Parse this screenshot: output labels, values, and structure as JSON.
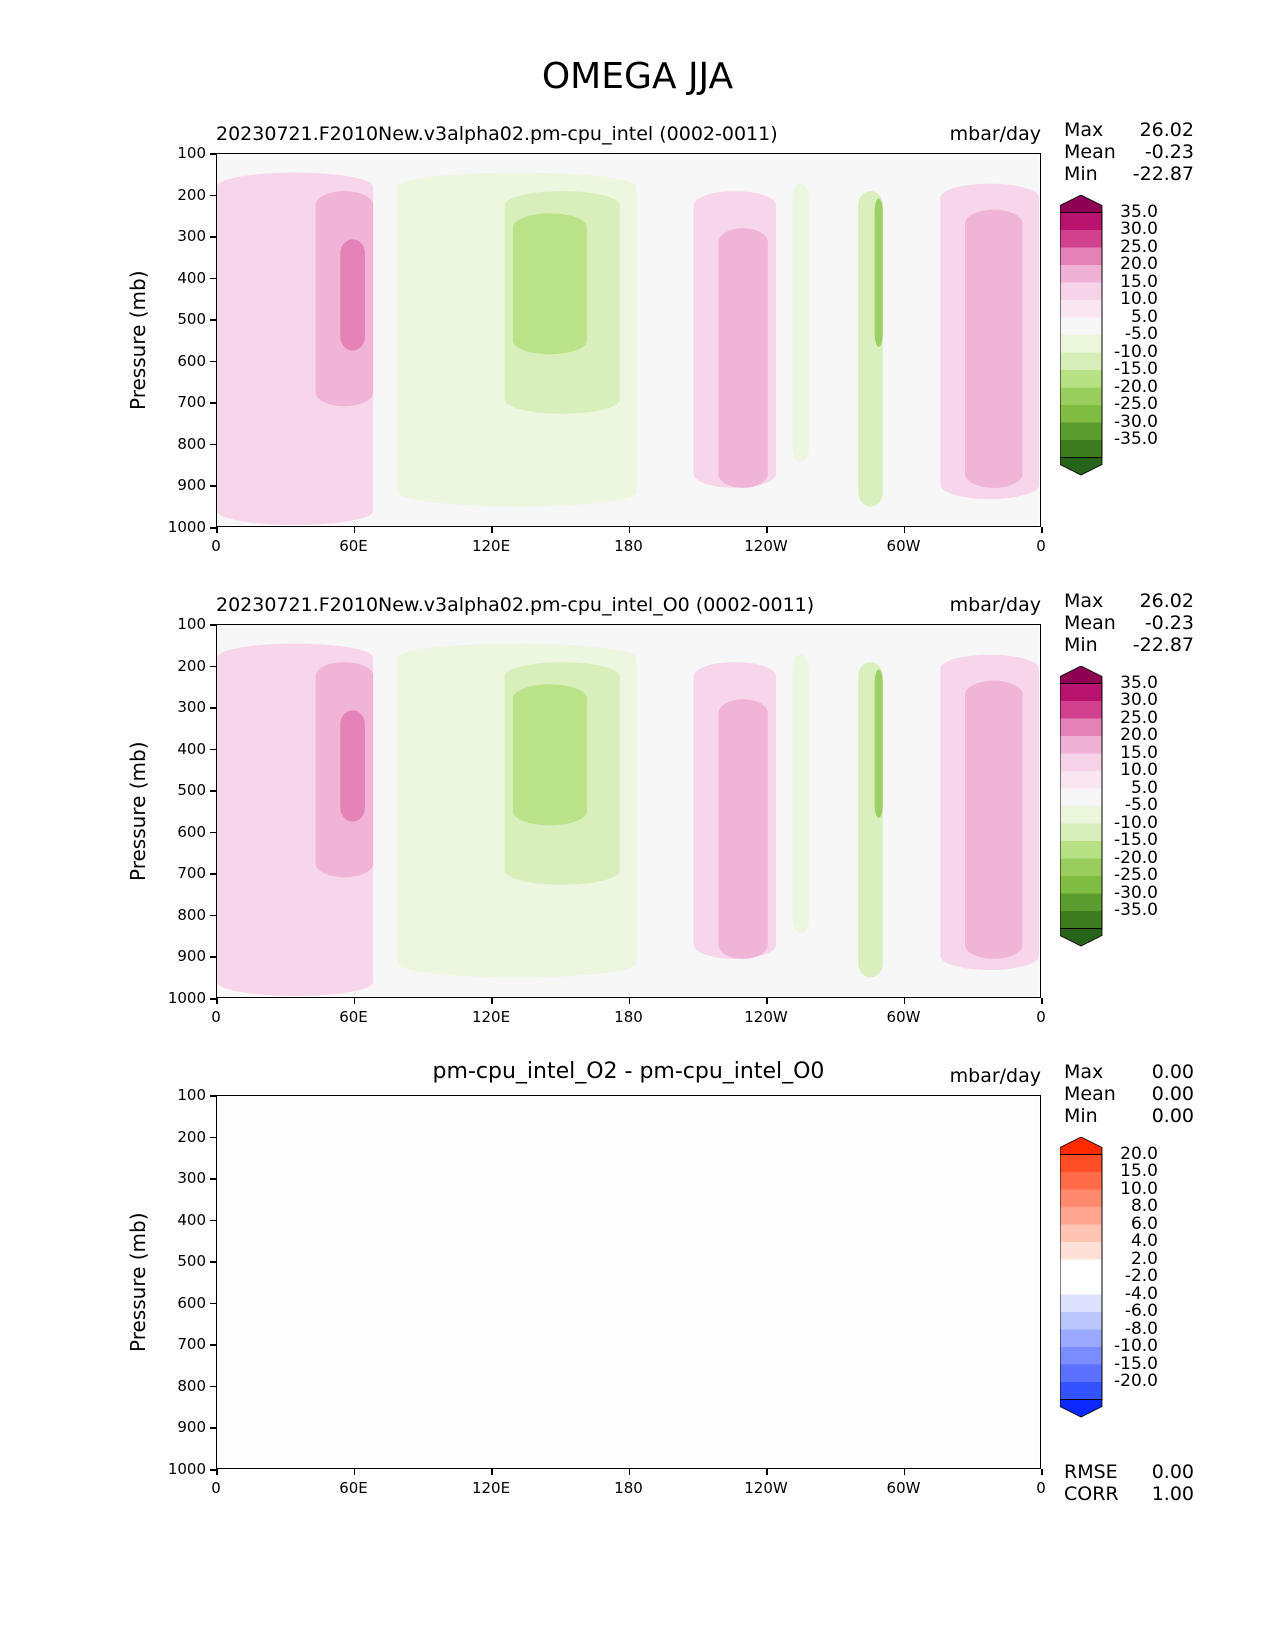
{
  "title": "OMEGA JJA",
  "chart_data": [
    {
      "type": "heatmap",
      "title": "20230721.F2010New.v3alpha02.pm-cpu_intel (0002-0011)",
      "units": "mbar/day",
      "ylabel": "Pressure (mb)",
      "y_ticks": [
        "100",
        "200",
        "300",
        "400",
        "500",
        "600",
        "700",
        "800",
        "900",
        "1000"
      ],
      "x_ticks": [
        "0",
        "60E",
        "120E",
        "180",
        "120W",
        "60W",
        "0"
      ],
      "stats": {
        "max_label": "Max",
        "max": "26.02",
        "mean_label": "Mean",
        "mean": "-0.23",
        "min_label": "Min",
        "min": "-22.87"
      },
      "colorbar": {
        "levels": [
          "35.0",
          "30.0",
          "25.0",
          "20.0",
          "15.0",
          "10.0",
          "5.0",
          "-5.0",
          "-10.0",
          "-15.0",
          "-20.0",
          "-25.0",
          "-30.0",
          "-35.0"
        ],
        "colors": [
          "#8e0152",
          "#b8146f",
          "#d1418e",
          "#e481b6",
          "#efb2d6",
          "#f7d3e9",
          "#fae6f1",
          "#f7f7f7",
          "#ecf6dd",
          "#d7eeb9",
          "#b8e186",
          "#99ce5f",
          "#7fbc41",
          "#5b9c2e",
          "#3e7d1f",
          "#276419"
        ]
      }
    },
    {
      "type": "heatmap",
      "title": "20230721.F2010New.v3alpha02.pm-cpu_intel_O0 (0002-0011)",
      "units": "mbar/day",
      "ylabel": "Pressure (mb)",
      "y_ticks": [
        "100",
        "200",
        "300",
        "400",
        "500",
        "600",
        "700",
        "800",
        "900",
        "1000"
      ],
      "x_ticks": [
        "0",
        "60E",
        "120E",
        "180",
        "120W",
        "60W",
        "0"
      ],
      "stats": {
        "max_label": "Max",
        "max": "26.02",
        "mean_label": "Mean",
        "mean": "-0.23",
        "min_label": "Min",
        "min": "-22.87"
      },
      "colorbar": {
        "levels": [
          "35.0",
          "30.0",
          "25.0",
          "20.0",
          "15.0",
          "10.0",
          "5.0",
          "-5.0",
          "-10.0",
          "-15.0",
          "-20.0",
          "-25.0",
          "-30.0",
          "-35.0"
        ],
        "colors": [
          "#8e0152",
          "#b8146f",
          "#d1418e",
          "#e481b6",
          "#efb2d6",
          "#f7d3e9",
          "#fae6f1",
          "#f7f7f7",
          "#ecf6dd",
          "#d7eeb9",
          "#b8e186",
          "#99ce5f",
          "#7fbc41",
          "#5b9c2e",
          "#3e7d1f",
          "#276419"
        ]
      }
    },
    {
      "type": "heatmap",
      "title": "pm-cpu_intel_O2 - pm-cpu_intel_O0",
      "units": "mbar/day",
      "ylabel": "Pressure (mb)",
      "y_ticks": [
        "100",
        "200",
        "300",
        "400",
        "500",
        "600",
        "700",
        "800",
        "900",
        "1000"
      ],
      "x_ticks": [
        "0",
        "60E",
        "120E",
        "180",
        "120W",
        "60W",
        "0"
      ],
      "stats": {
        "max_label": "Max",
        "max": "0.00",
        "mean_label": "Mean",
        "mean": "0.00",
        "min_label": "Min",
        "min": "0.00"
      },
      "extra_stats": {
        "rmse_label": "RMSE",
        "rmse": "0.00",
        "corr_label": "CORR",
        "corr": "1.00"
      },
      "colorbar": {
        "levels": [
          "20.0",
          "15.0",
          "10.0",
          "8.0",
          "6.0",
          "4.0",
          "2.0",
          "-2.0",
          "-4.0",
          "-6.0",
          "-8.0",
          "-10.0",
          "-15.0",
          "-20.0"
        ],
        "colors": [
          "#ff2a00",
          "#ff4d26",
          "#ff6a48",
          "#ff8a6d",
          "#ffa590",
          "#ffc4b4",
          "#ffe0d8",
          "#ffffff",
          "#ffffff",
          "#dde3ff",
          "#bcc6ff",
          "#9aa8ff",
          "#7a8cff",
          "#5a70ff",
          "#3452ff",
          "#0a28ff"
        ]
      }
    }
  ]
}
